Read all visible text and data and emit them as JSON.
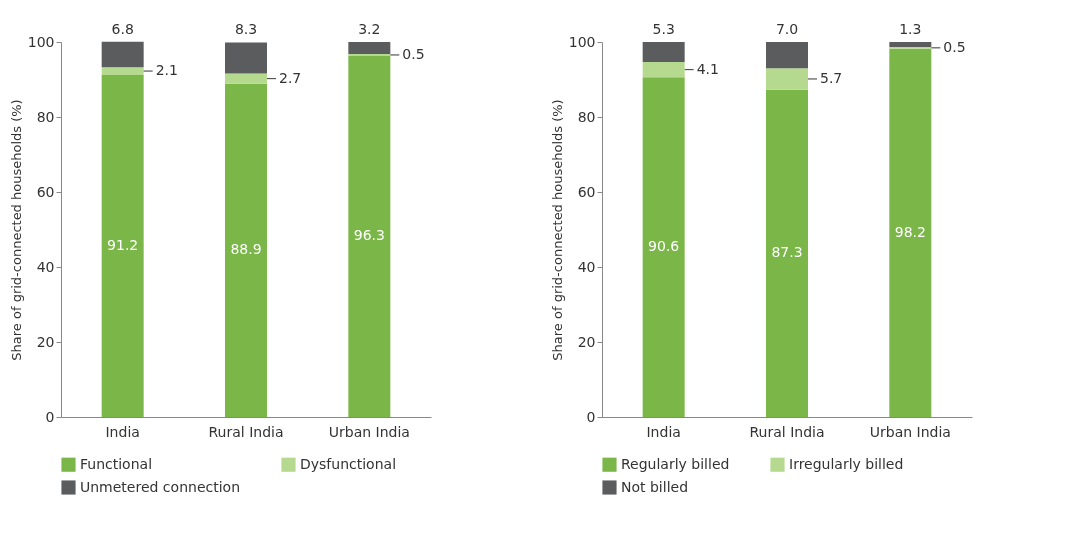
{
  "chart_data": [
    {
      "type": "bar",
      "stacked": true,
      "categories": [
        "India",
        "Rural India",
        "Urban India"
      ],
      "ylabel": "Share of grid-connected households (%)",
      "ylim": [
        0,
        100
      ],
      "yticks": [
        0,
        20,
        40,
        60,
        80,
        100
      ],
      "grid": false,
      "legend": "bottom",
      "series": [
        {
          "name": "Functional",
          "color": "#7ab648",
          "values": [
            91.2,
            88.9,
            96.3
          ],
          "value_labels": [
            "91.2",
            "88.9",
            "96.3"
          ]
        },
        {
          "name": "Dysfunctional",
          "color": "#b5d98f",
          "values": [
            2.1,
            2.7,
            0.5
          ],
          "value_labels": [
            "2.1",
            "2.7",
            "0.5"
          ]
        },
        {
          "name": "Unmetered connection",
          "color": "#5b5c5e",
          "values": [
            6.8,
            8.3,
            3.2
          ],
          "value_labels": [
            "6.8",
            "8.3",
            "3.2"
          ]
        }
      ]
    },
    {
      "type": "bar",
      "stacked": true,
      "categories": [
        "India",
        "Rural India",
        "Urban India"
      ],
      "ylabel": "Share of grid-connected households (%)",
      "ylim": [
        0,
        100
      ],
      "yticks": [
        0,
        20,
        40,
        60,
        80,
        100
      ],
      "grid": false,
      "legend": "bottom",
      "series": [
        {
          "name": "Regularly billed",
          "color": "#7ab648",
          "values": [
            90.6,
            87.3,
            98.2
          ],
          "value_labels": [
            "90.6",
            "87.3",
            "98.2"
          ]
        },
        {
          "name": "Irregularly billed",
          "color": "#b5d98f",
          "values": [
            4.1,
            5.7,
            0.5
          ],
          "value_labels": [
            "4.1",
            "5.7",
            "0.5"
          ]
        },
        {
          "name": "Not billed",
          "color": "#5b5c5e",
          "values": [
            5.3,
            7.0,
            1.3
          ],
          "value_labels": [
            "5.3",
            "7.0",
            "1.3"
          ]
        }
      ]
    }
  ]
}
